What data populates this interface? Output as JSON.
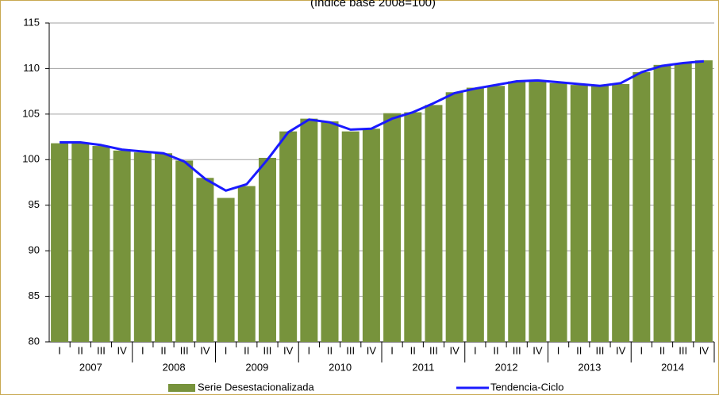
{
  "chart_data": {
    "type": "bar",
    "subtitle": "(índice base 2008=100)",
    "categories": [
      "I",
      "II",
      "III",
      "IV",
      "I",
      "II",
      "III",
      "IV",
      "I",
      "II",
      "III",
      "IV",
      "I",
      "II",
      "III",
      "IV",
      "I",
      "II",
      "III",
      "IV",
      "I",
      "II",
      "III",
      "IV",
      "I",
      "II",
      "III",
      "IV",
      "I",
      "II",
      "III",
      "IV"
    ],
    "years": [
      "2007",
      "2008",
      "2009",
      "2010",
      "2011",
      "2012",
      "2013",
      "2014"
    ],
    "series": [
      {
        "name": "Serie Desestacionalizada",
        "type": "bar",
        "color": "#77933c",
        "values": [
          101.8,
          101.8,
          101.5,
          101.0,
          100.8,
          100.7,
          99.9,
          98.0,
          95.8,
          97.1,
          100.2,
          103.1,
          104.5,
          104.2,
          103.1,
          103.4,
          105.1,
          105.2,
          106.0,
          107.4,
          107.9,
          108.1,
          108.6,
          108.7,
          108.4,
          108.2,
          108.1,
          108.3,
          109.6,
          110.4,
          110.6,
          110.9
        ]
      },
      {
        "name": "Tendencia-Ciclo",
        "type": "line",
        "color": "#1a1aff",
        "values": [
          101.9,
          101.9,
          101.6,
          101.1,
          100.9,
          100.7,
          99.8,
          97.9,
          96.6,
          97.3,
          100.0,
          103.0,
          104.4,
          104.1,
          103.3,
          103.4,
          104.5,
          105.2,
          106.2,
          107.3,
          107.8,
          108.2,
          108.6,
          108.7,
          108.5,
          108.3,
          108.1,
          108.4,
          109.6,
          110.3,
          110.6,
          110.8
        ]
      }
    ],
    "ylim": [
      80,
      115
    ],
    "yticks": [
      80,
      85,
      90,
      95,
      100,
      105,
      110,
      115
    ],
    "grid": true
  }
}
